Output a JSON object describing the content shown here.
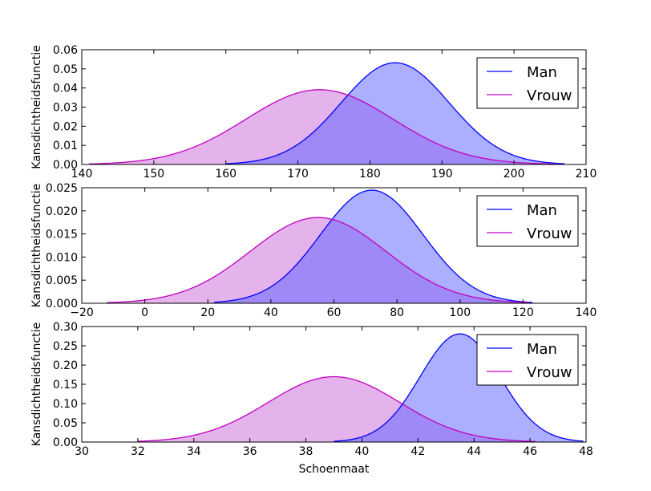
{
  "chart_data": [
    {
      "type": "area",
      "xlabel": "",
      "ylabel": "Kansdichtheidsfunctie",
      "xlim": [
        140,
        210
      ],
      "ylim": [
        0,
        0.06
      ],
      "xticks": [
        "140",
        "150",
        "160",
        "170",
        "180",
        "190",
        "200",
        "210"
      ],
      "yticks": [
        "0.00",
        "0.01",
        "0.02",
        "0.03",
        "0.04",
        "0.05",
        "0.06"
      ],
      "legend_position": "top-right",
      "series": [
        {
          "name": "Man",
          "color": "#0000ff",
          "fill": "#aab1ff",
          "mean": 183.5,
          "sd": 7.5,
          "range": [
            160,
            207
          ]
        },
        {
          "name": "Vrouw",
          "color": "#c000c0",
          "fill": "#e8b0ec",
          "mean": 173,
          "sd": 10.2,
          "range": [
            141,
            206
          ]
        }
      ]
    },
    {
      "type": "area",
      "xlabel": "",
      "ylabel": "Kansdichtheidsfunctie",
      "xlim": [
        -20,
        140
      ],
      "ylim": [
        0,
        0.025
      ],
      "xticks": [
        "−20",
        "0",
        "20",
        "40",
        "60",
        "80",
        "100",
        "120",
        "140"
      ],
      "yticks": [
        "0.000",
        "0.005",
        "0.010",
        "0.015",
        "0.020",
        "0.025"
      ],
      "legend_position": "top-right",
      "series": [
        {
          "name": "Man",
          "color": "#0000ff",
          "fill": "#aab1ff",
          "mean": 72,
          "sd": 16.3,
          "range": [
            22,
            123
          ]
        },
        {
          "name": "Vrouw",
          "color": "#c000c0",
          "fill": "#e8b0ec",
          "mean": 55,
          "sd": 21.5,
          "range": [
            -12,
            122
          ]
        }
      ]
    },
    {
      "type": "area",
      "xlabel": "Schoenmaat",
      "ylabel": "Kansdichtheidsfunctie",
      "xlim": [
        30,
        48
      ],
      "ylim": [
        0,
        0.3
      ],
      "xticks": [
        "30",
        "32",
        "34",
        "36",
        "38",
        "40",
        "42",
        "44",
        "46",
        "48"
      ],
      "yticks": [
        "0.00",
        "0.05",
        "0.10",
        "0.15",
        "0.20",
        "0.25",
        "0.30"
      ],
      "legend_position": "top-right",
      "series": [
        {
          "name": "Man",
          "color": "#0000ff",
          "fill": "#aab1ff",
          "mean": 43.5,
          "sd": 1.42,
          "range": [
            39,
            47.9
          ]
        },
        {
          "name": "Vrouw",
          "color": "#c000c0",
          "fill": "#e8b0ec",
          "mean": 39,
          "sd": 2.35,
          "range": [
            32,
            46.2
          ]
        }
      ]
    }
  ]
}
